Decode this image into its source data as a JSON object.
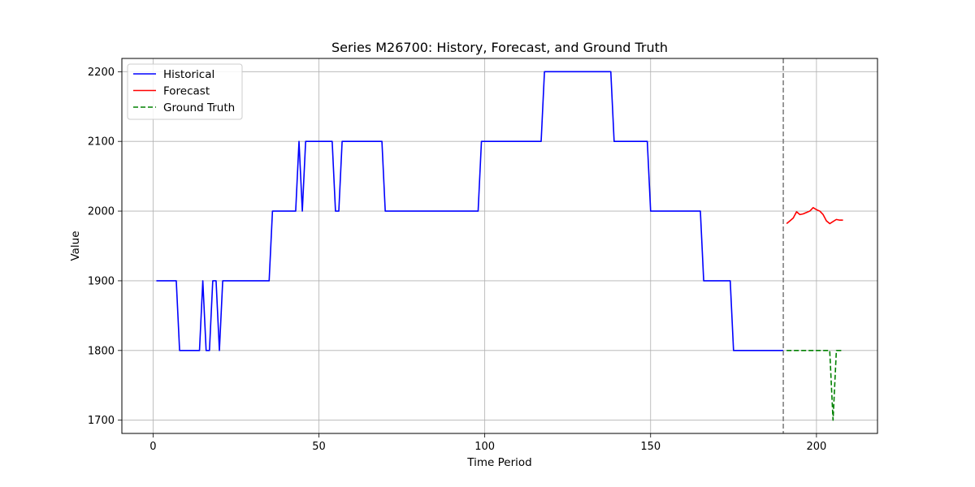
{
  "chart_data": {
    "type": "line",
    "title": "Series M26700: History, Forecast, and Ground Truth",
    "xlabel": "Time Period",
    "ylabel": "Value",
    "xlim": [
      -9.4,
      218.4
    ],
    "ylim": [
      1681,
      2219
    ],
    "xticks": [
      0,
      50,
      100,
      150,
      200
    ],
    "yticks": [
      1700,
      1800,
      1900,
      2000,
      2100,
      2200
    ],
    "grid": true,
    "legend_position": "top-left",
    "forecast_start_marker": 190,
    "series": [
      {
        "name": "Historical",
        "color": "#0000ff",
        "style": "solid",
        "points": [
          [
            1,
            1900
          ],
          [
            7,
            1900
          ],
          [
            8,
            1800
          ],
          [
            14,
            1800
          ],
          [
            15,
            1900
          ],
          [
            16,
            1800
          ],
          [
            17,
            1800
          ],
          [
            18,
            1900
          ],
          [
            19,
            1900
          ],
          [
            20,
            1800
          ],
          [
            21,
            1900
          ],
          [
            35,
            1900
          ],
          [
            36,
            2000
          ],
          [
            43,
            2000
          ],
          [
            44,
            2100
          ],
          [
            45,
            2000
          ],
          [
            46,
            2100
          ],
          [
            54,
            2100
          ],
          [
            55,
            2000
          ],
          [
            56,
            2000
          ],
          [
            57,
            2100
          ],
          [
            69,
            2100
          ],
          [
            70,
            2000
          ],
          [
            98,
            2000
          ],
          [
            99,
            2100
          ],
          [
            117,
            2100
          ],
          [
            118,
            2200
          ],
          [
            138,
            2200
          ],
          [
            139,
            2100
          ],
          [
            149,
            2100
          ],
          [
            150,
            2000
          ],
          [
            165,
            2000
          ],
          [
            166,
            1900
          ],
          [
            174,
            1900
          ],
          [
            175,
            1800
          ],
          [
            190,
            1800
          ]
        ]
      },
      {
        "name": "Forecast",
        "color": "#ff0000",
        "style": "solid",
        "points": [
          [
            191,
            1982
          ],
          [
            192,
            1986
          ],
          [
            193,
            1990
          ],
          [
            194,
            1999
          ],
          [
            195,
            1995
          ],
          [
            196,
            1996
          ],
          [
            197,
            1998
          ],
          [
            198,
            2000
          ],
          [
            199,
            2005
          ],
          [
            200,
            2002
          ],
          [
            201,
            2000
          ],
          [
            202,
            1995
          ],
          [
            203,
            1986
          ],
          [
            204,
            1982
          ],
          [
            205,
            1985
          ],
          [
            206,
            1988
          ],
          [
            207,
            1987
          ],
          [
            208,
            1987
          ]
        ]
      },
      {
        "name": "Ground Truth",
        "color": "#008000",
        "style": "dashed",
        "points": [
          [
            191,
            1800
          ],
          [
            203,
            1800
          ],
          [
            204,
            1800
          ],
          [
            205,
            1700
          ],
          [
            206,
            1800
          ],
          [
            208,
            1800
          ]
        ]
      }
    ]
  }
}
